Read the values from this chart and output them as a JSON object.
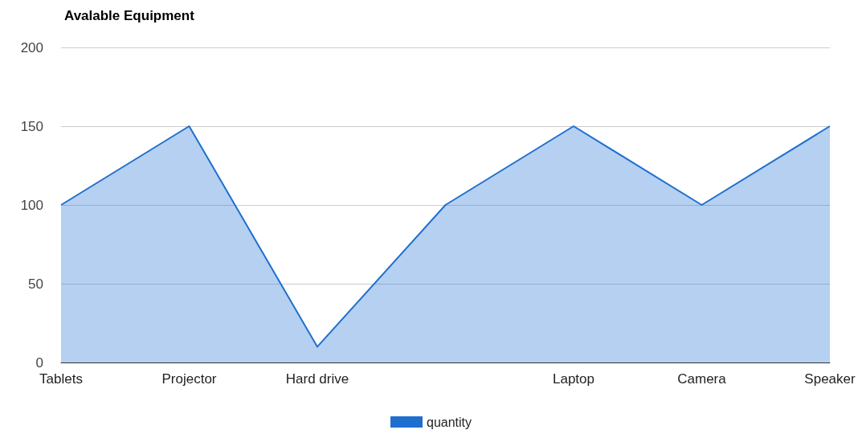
{
  "chart_data": {
    "type": "area",
    "title": "Avalable Equipment",
    "categories": [
      "Tablets",
      "Projector",
      "Hard drive",
      null,
      "Laptop",
      "Camera",
      "Speaker"
    ],
    "series": [
      {
        "name": "quantity",
        "color": "#1f6fd0",
        "values": [
          100,
          150,
          10,
          100,
          150,
          100,
          150
        ]
      }
    ],
    "ylim": [
      0,
      200
    ],
    "yticks": [
      0,
      50,
      100,
      150,
      200
    ],
    "grid": "y",
    "legend": "bottom",
    "marker": "none"
  }
}
